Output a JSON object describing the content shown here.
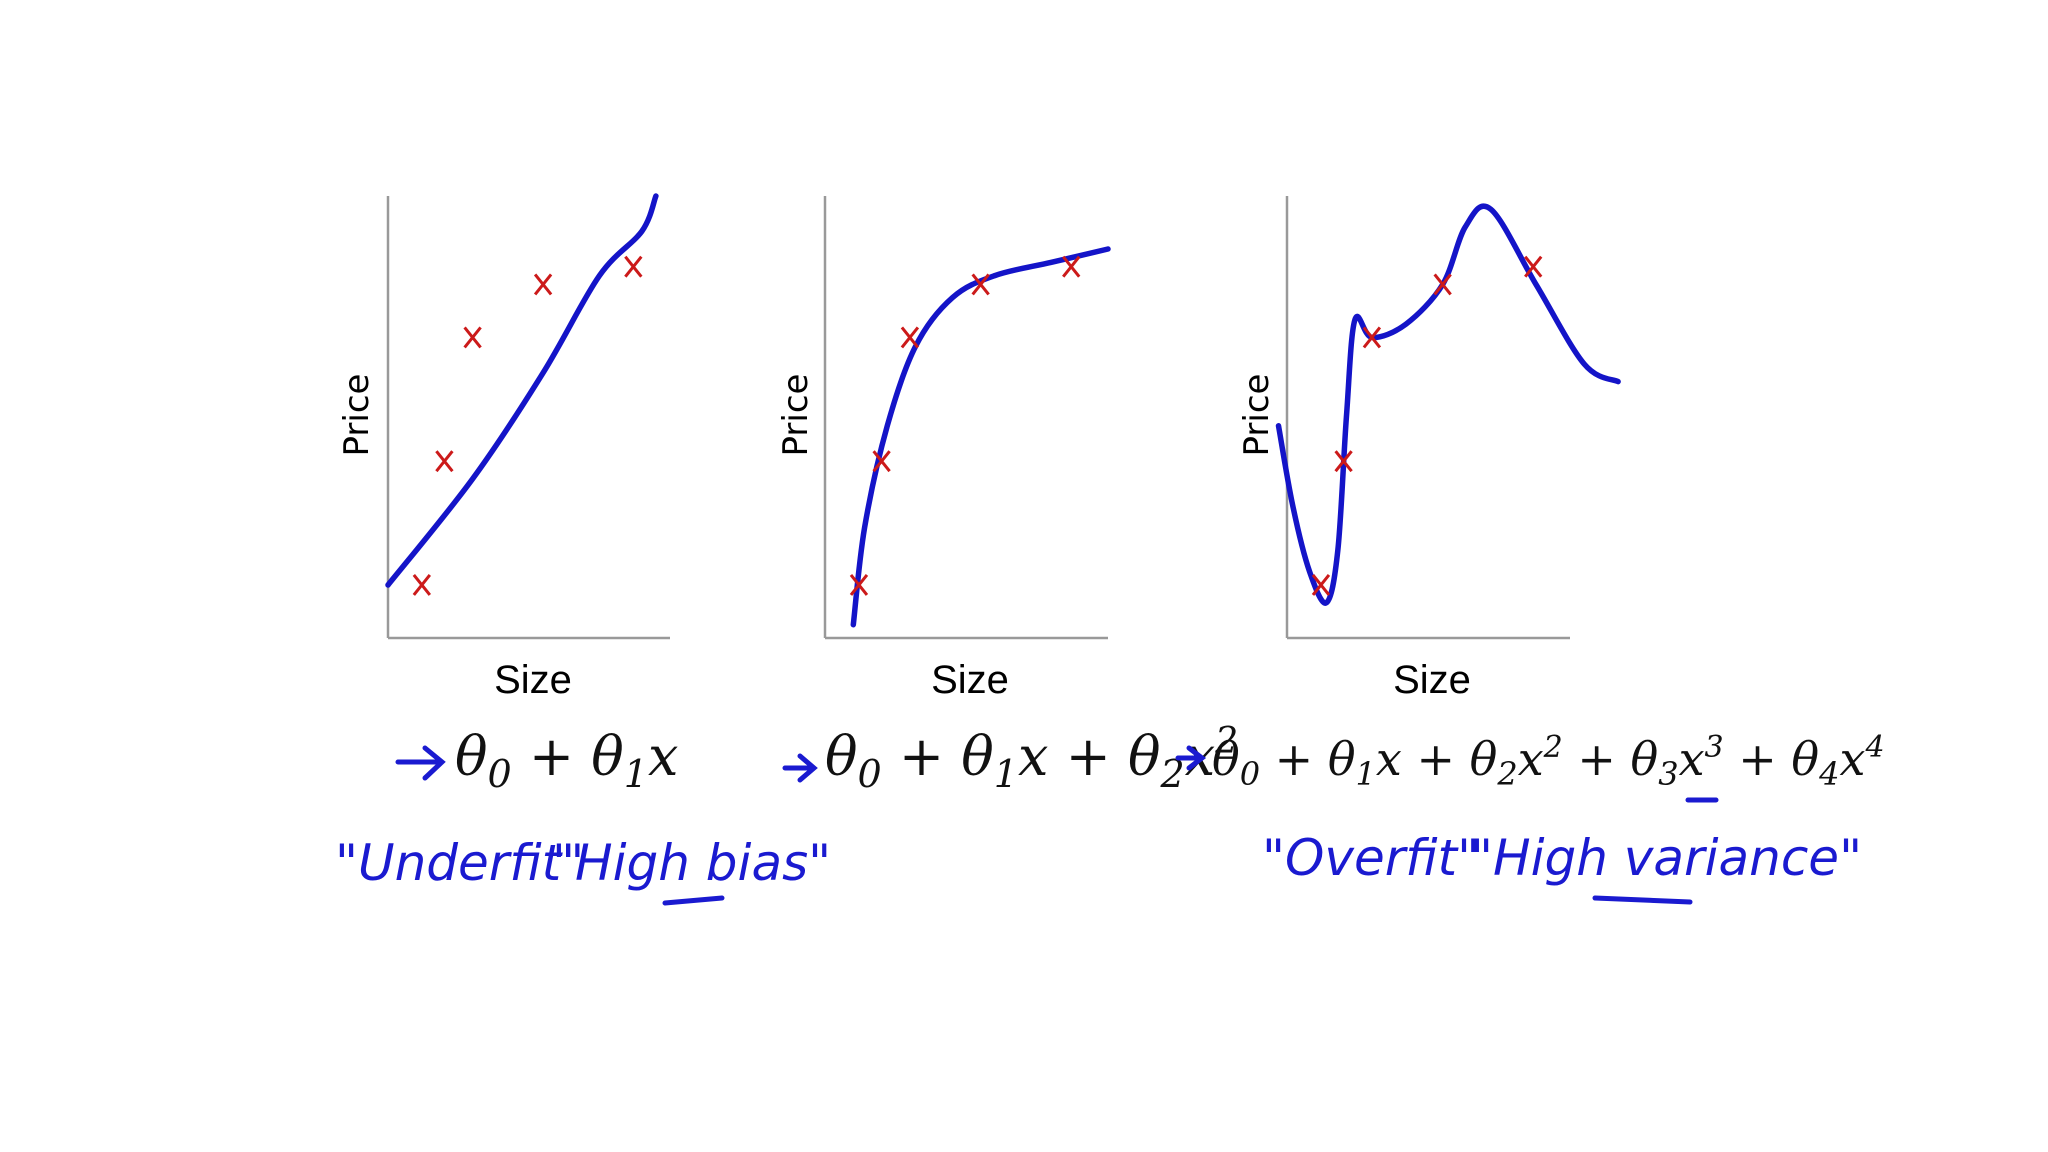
{
  "chart_data": [
    {
      "type": "line",
      "xlabel": "Size",
      "ylabel": "Price",
      "formula": {
        "text": "θ0 + θ1x",
        "pieces": [
          "θ",
          "0",
          " + θ",
          "1",
          "x"
        ]
      },
      "annotations": [
        "\"Underfit\"",
        "\"High bias\""
      ],
      "points": [
        {
          "x": 0.12,
          "y": 0.12
        },
        {
          "x": 0.2,
          "y": 0.4
        },
        {
          "x": 0.3,
          "y": 0.68
        },
        {
          "x": 0.55,
          "y": 0.8
        },
        {
          "x": 0.87,
          "y": 0.84
        }
      ],
      "curve": [
        [
          0,
          0.12
        ],
        [
          0.3,
          0.36
        ],
        [
          0.55,
          0.6
        ],
        [
          0.75,
          0.82
        ],
        [
          0.9,
          0.92
        ],
        [
          0.95,
          1.0
        ]
      ]
    },
    {
      "type": "line",
      "xlabel": "Size",
      "ylabel": "Price",
      "formula": {
        "text": "θ0 + θ1x + θ2x2",
        "pieces": [
          "θ",
          "0",
          " + θ",
          "1",
          "x + θ",
          "2",
          "x",
          "2"
        ]
      },
      "annotations": [],
      "points": [
        {
          "x": 0.12,
          "y": 0.12
        },
        {
          "x": 0.2,
          "y": 0.4
        },
        {
          "x": 0.3,
          "y": 0.68
        },
        {
          "x": 0.55,
          "y": 0.8
        },
        {
          "x": 0.87,
          "y": 0.84
        }
      ],
      "curve": [
        [
          0.1,
          0.03
        ],
        [
          0.14,
          0.25
        ],
        [
          0.22,
          0.48
        ],
        [
          0.32,
          0.66
        ],
        [
          0.45,
          0.77
        ],
        [
          0.6,
          0.82
        ],
        [
          0.8,
          0.85
        ],
        [
          1.0,
          0.88
        ]
      ]
    },
    {
      "type": "line",
      "xlabel": "Size",
      "ylabel": "Price",
      "formula": {
        "text": "θ0 + θ1x + θ2x2 + θ3x3 + θ4x4",
        "pieces": [
          "θ",
          "0",
          " + θ",
          "1",
          "x + θ",
          "2",
          "x",
          "2",
          " + θ",
          "3",
          "x",
          "3",
          " + θ",
          "4",
          "x",
          "4"
        ]
      },
      "annotations": [
        "\"Overfit\"",
        "\"High variance\""
      ],
      "points": [
        {
          "x": 0.12,
          "y": 0.12
        },
        {
          "x": 0.2,
          "y": 0.4
        },
        {
          "x": 0.3,
          "y": 0.68
        },
        {
          "x": 0.55,
          "y": 0.8
        },
        {
          "x": 0.87,
          "y": 0.84
        }
      ],
      "curve": [
        [
          -0.03,
          0.48
        ],
        [
          0.02,
          0.3
        ],
        [
          0.08,
          0.15
        ],
        [
          0.14,
          0.08
        ],
        [
          0.18,
          0.2
        ],
        [
          0.21,
          0.5
        ],
        [
          0.24,
          0.72
        ],
        [
          0.3,
          0.68
        ],
        [
          0.42,
          0.71
        ],
        [
          0.55,
          0.8
        ],
        [
          0.63,
          0.93
        ],
        [
          0.72,
          0.97
        ],
        [
          0.88,
          0.8
        ],
        [
          1.05,
          0.62
        ],
        [
          1.17,
          0.58
        ]
      ]
    }
  ],
  "colors": {
    "curve": "#1414c8",
    "marker": "#cc1a1a",
    "axis": "#999999",
    "ink": "#1a1ad0"
  }
}
